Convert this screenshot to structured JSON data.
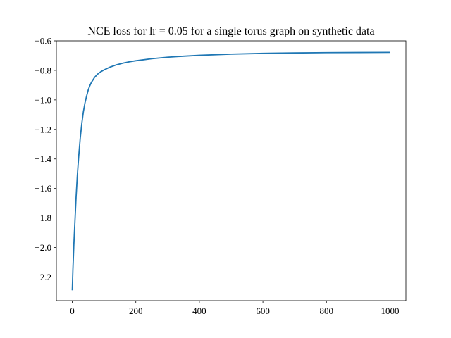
{
  "chart_data": {
    "type": "line",
    "title": "NCE loss for lr = 0.05 for a single torus graph on synthetic data",
    "xlabel": "",
    "ylabel": "",
    "xlim": [
      -50,
      1050
    ],
    "ylim": [
      -2.36,
      -0.6
    ],
    "xticks": [
      0,
      200,
      400,
      600,
      800,
      1000
    ],
    "yticks": [
      -0.6,
      -0.8,
      -1.0,
      -1.2,
      -1.4,
      -1.6,
      -1.8,
      -2.0,
      -2.2
    ],
    "xtick_labels": [
      "0",
      "200",
      "400",
      "600",
      "800",
      "1000"
    ],
    "ytick_labels": [
      "−0.6",
      "−0.8",
      "−1.0",
      "−1.2",
      "−1.4",
      "−1.6",
      "−1.8",
      "−2.0",
      "−2.2"
    ],
    "grid": false,
    "series": [
      {
        "color": "#1f77b4",
        "x": [
          0,
          2,
          5,
          8,
          12,
          16,
          20,
          25,
          30,
          35,
          40,
          45,
          50,
          55,
          60,
          70,
          80,
          90,
          100,
          120,
          140,
          160,
          180,
          200,
          250,
          300,
          350,
          400,
          500,
          600,
          700,
          800,
          900,
          1000
        ],
        "y": [
          -2.29,
          -2.15,
          -1.98,
          -1.84,
          -1.66,
          -1.51,
          -1.39,
          -1.26,
          -1.16,
          -1.08,
          -1.02,
          -0.975,
          -0.935,
          -0.905,
          -0.882,
          -0.848,
          -0.825,
          -0.809,
          -0.797,
          -0.777,
          -0.762,
          -0.751,
          -0.742,
          -0.735,
          -0.721,
          -0.711,
          -0.704,
          -0.698,
          -0.69,
          -0.685,
          -0.682,
          -0.68,
          -0.679,
          -0.678
        ]
      }
    ]
  }
}
